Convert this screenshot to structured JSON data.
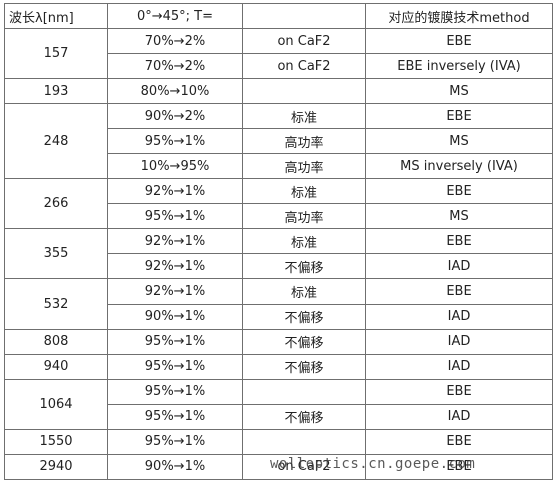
{
  "headers": [
    "波长λ[nm]",
    "0°→45°; T=",
    "",
    "对应的镀膜技术method"
  ],
  "groups": [
    {
      "wavelength": "157",
      "rows": [
        {
          "transmission": "70%→2%",
          "note": "on CaF2",
          "method": "EBE"
        },
        {
          "transmission": "70%→2%",
          "note": "on CaF2",
          "method": "EBE inversely (IVA)"
        }
      ]
    },
    {
      "wavelength": "193",
      "rows": [
        {
          "transmission": "80%→10%",
          "note": "",
          "method": "MS"
        }
      ]
    },
    {
      "wavelength": "248",
      "rows": [
        {
          "transmission": "90%→2%",
          "note": "标准",
          "method": "EBE"
        },
        {
          "transmission": "95%→1%",
          "note": "高功率",
          "method": "MS"
        },
        {
          "transmission": "10%→95%",
          "note": "高功率",
          "method": "MS  inversely (IVA)"
        }
      ]
    },
    {
      "wavelength": "266",
      "rows": [
        {
          "transmission": "92%→1%",
          "note": "标准",
          "method": "EBE"
        },
        {
          "transmission": "95%→1%",
          "note": "高功率",
          "method": "MS"
        }
      ]
    },
    {
      "wavelength": "355",
      "rows": [
        {
          "transmission": "92%→1%",
          "note": "标准",
          "method": "EBE"
        },
        {
          "transmission": "92%→1%",
          "note": "不偏移",
          "method": "IAD"
        }
      ]
    },
    {
      "wavelength": "532",
      "rows": [
        {
          "transmission": "92%→1%",
          "note": "标准",
          "method": "EBE"
        },
        {
          "transmission": "90%→1%",
          "note": "不偏移",
          "method": "IAD"
        }
      ]
    },
    {
      "wavelength": "808",
      "rows": [
        {
          "transmission": "95%→1%",
          "note": "不偏移",
          "method": "IAD"
        }
      ]
    },
    {
      "wavelength": "940",
      "rows": [
        {
          "transmission": "95%→1%",
          "note": "不偏移",
          "method": "IAD"
        }
      ]
    },
    {
      "wavelength": "1064",
      "rows": [
        {
          "transmission": "95%→1%",
          "note": "",
          "method": "EBE"
        },
        {
          "transmission": "95%→1%",
          "note": "不偏移",
          "method": "IAD"
        }
      ]
    },
    {
      "wavelength": "1550",
      "rows": [
        {
          "transmission": "95%→1%",
          "note": "",
          "method": "EBE"
        }
      ]
    },
    {
      "wavelength": "2940",
      "rows": [
        {
          "transmission": "90%→1%",
          "note": "on CaF2",
          "method": "EBE"
        }
      ]
    }
  ],
  "watermark": "wolloptics.cn.goepe.com"
}
